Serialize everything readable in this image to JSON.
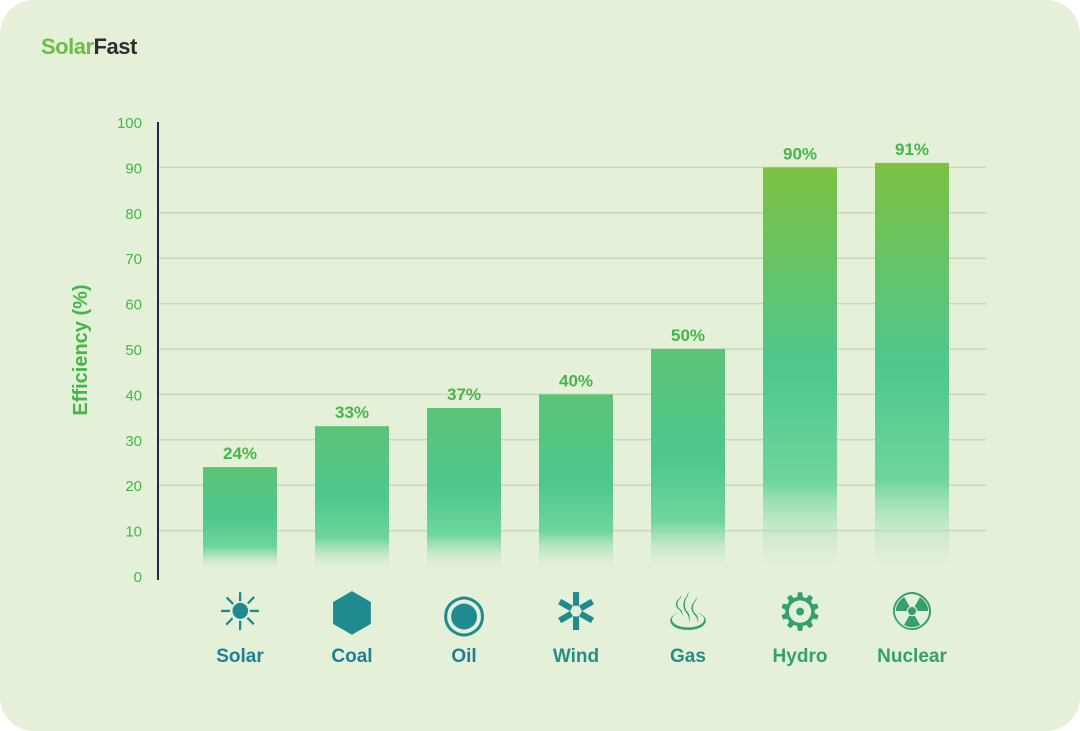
{
  "brand": {
    "part1": "Solar",
    "part2": "Fast"
  },
  "colors": {
    "brand_green": "#6cbf45",
    "bar_top": "#7cc142",
    "bar_mid": "#4ec78e",
    "label_teal": "#1f7f95",
    "label_green": "#35a06c"
  },
  "chart_data": {
    "type": "bar",
    "title": "",
    "xlabel": "",
    "ylabel": "Efficiency (%)",
    "ylim": [
      0,
      100
    ],
    "yticks": [
      0,
      10,
      20,
      30,
      40,
      50,
      60,
      70,
      80,
      90,
      100
    ],
    "grid": true,
    "categories": [
      "Solar",
      "Coal",
      "Oil",
      "Wind",
      "Gas",
      "Hydro",
      "Nuclear"
    ],
    "icons": [
      "solar-panel-icon",
      "coal-icon",
      "oil-icon",
      "wind-turbine-icon",
      "gas-flame-icon",
      "hydro-icon",
      "nuclear-plant-icon"
    ],
    "values": [
      24,
      33,
      37,
      40,
      50,
      90,
      91
    ],
    "data_labels": [
      "24%",
      "33%",
      "37%",
      "40%",
      "50%",
      "90%",
      "91%"
    ]
  }
}
